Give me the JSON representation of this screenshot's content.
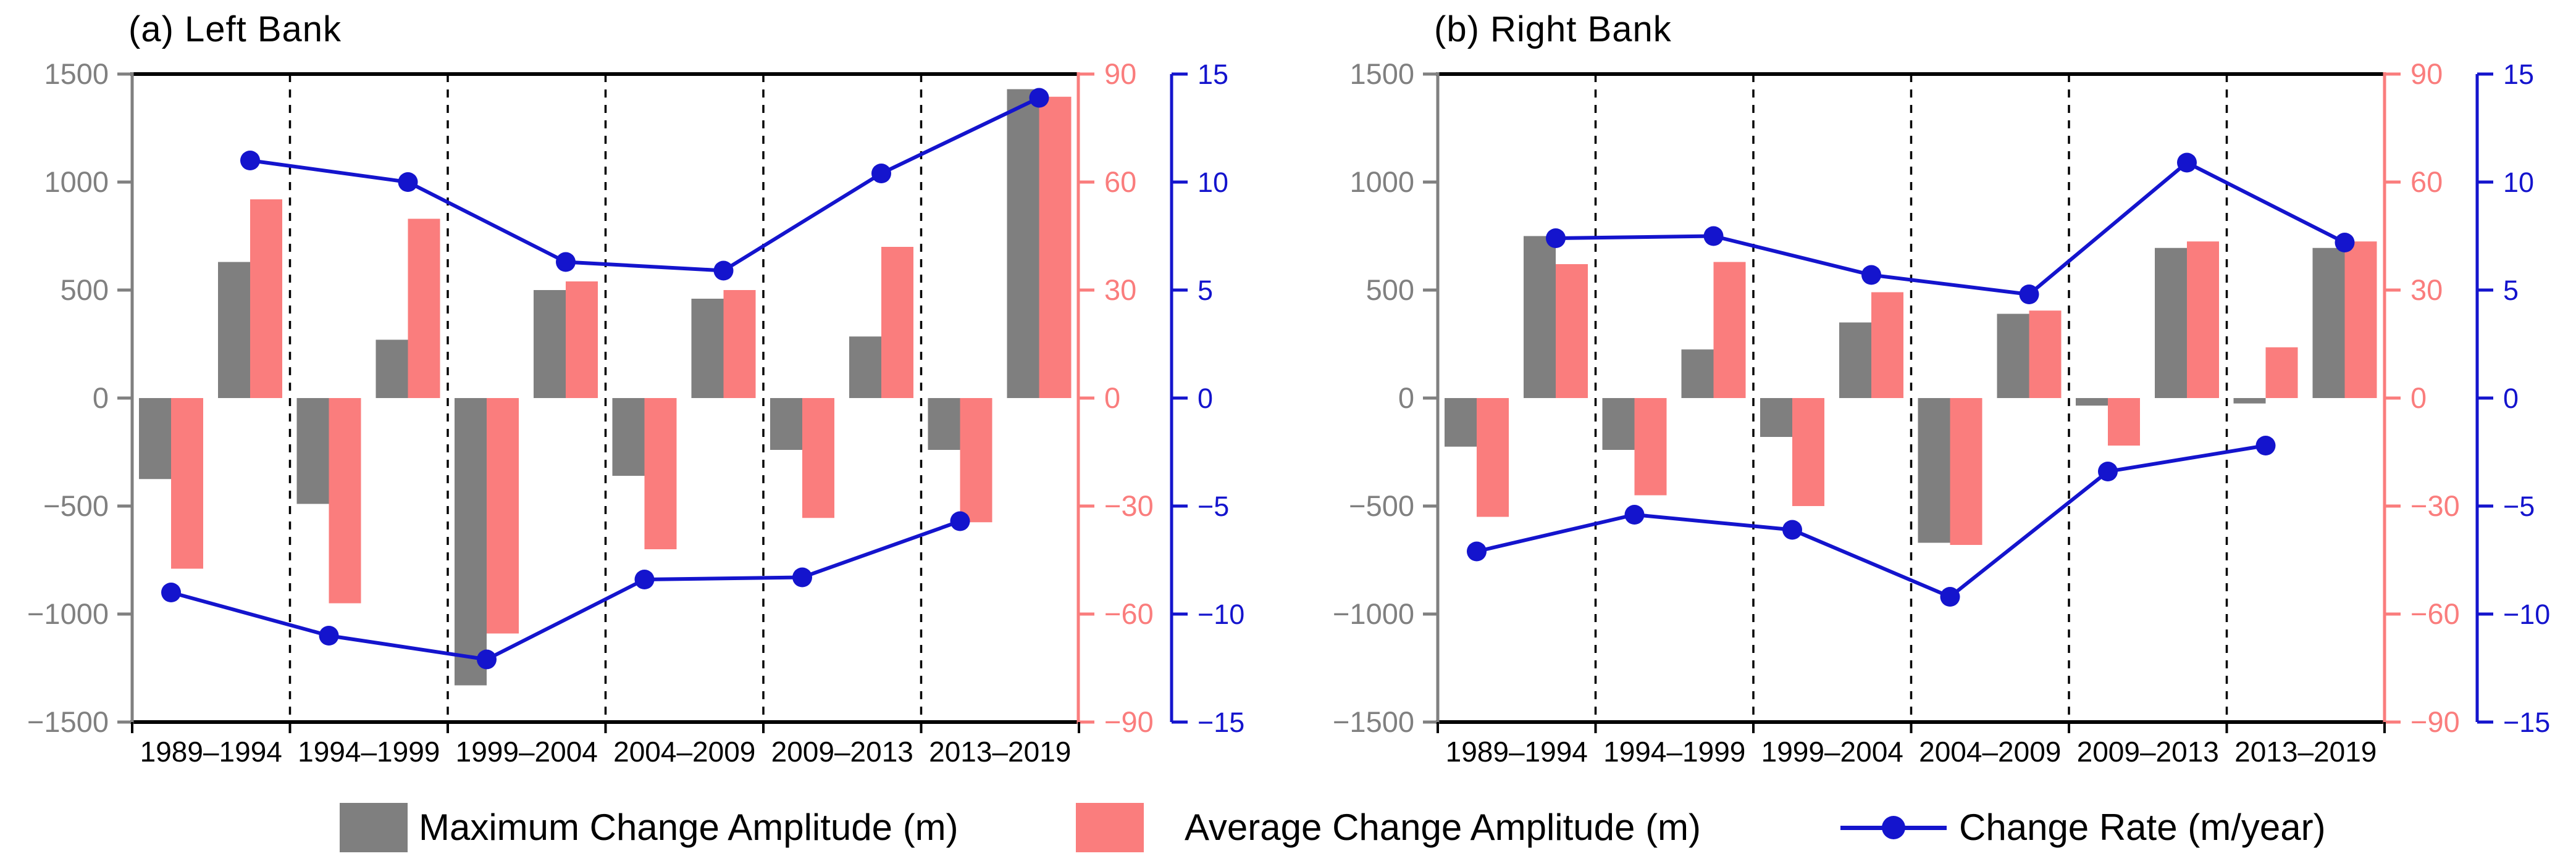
{
  "figure": {
    "background": "#ffffff"
  },
  "colors": {
    "max_bar": "#7f7f7f",
    "avg_bar": "#fa7d7d",
    "rate_line": "#1414cd",
    "axis_gray": "#808080",
    "frame": "#000000"
  },
  "legend": {
    "items": [
      {
        "swatch": "gray-rect",
        "label": "Maximum Change Amplitude (m)"
      },
      {
        "swatch": "red-rect",
        "label": "Average Change Amplitude (m)"
      },
      {
        "swatch": "blue-line-dot",
        "label": "Change Rate (m/year)"
      }
    ]
  },
  "chart_data": [
    {
      "type": "bar",
      "title": "(a) Left Bank",
      "categories": [
        "1989–1994",
        "1994–1999",
        "1999–2004",
        "2004–2009",
        "2009–2013",
        "2013–2019"
      ],
      "ylabel": "",
      "y_left": {
        "range": [
          -1500,
          1500
        ],
        "tick_labels": [
          "1500",
          "1000",
          "500",
          "0",
          "−500",
          "−1000",
          "−1500"
        ]
      },
      "y_right_red": {
        "range": [
          -90,
          90
        ],
        "tick_labels": [
          "90",
          "60",
          "30",
          "0",
          "−30",
          "−60",
          "−90"
        ]
      },
      "y_right_blue": {
        "range": [
          -15,
          15
        ],
        "tick_labels": [
          "15",
          "10",
          "5",
          "0",
          "−5",
          "−10",
          "−15"
        ]
      },
      "grid": "dashed-vertical-period-dividers",
      "legend_position": "below-figure",
      "series": [
        {
          "name": "Maximum Change Amplitude (m)",
          "group": "lower",
          "axis": "left",
          "values": [
            -375,
            -490,
            -1330,
            -360,
            -240,
            -240
          ]
        },
        {
          "name": "Average Change Amplitude (m)",
          "group": "lower",
          "axis": "left",
          "values": [
            -790,
            -950,
            -1090,
            -700,
            -555,
            -575
          ]
        },
        {
          "name": "Maximum Change Amplitude (m)",
          "group": "upper",
          "axis": "left",
          "values": [
            630,
            270,
            500,
            460,
            285,
            1430
          ]
        },
        {
          "name": "Average Change Amplitude (m)",
          "group": "upper",
          "axis": "left",
          "values": [
            920,
            830,
            540,
            500,
            700,
            1395
          ]
        },
        {
          "name": "Change Rate (m/year)",
          "group": "lower",
          "axis": "blue",
          "values": [
            -9.0,
            -11.0,
            -12.1,
            -8.4,
            -8.3,
            -5.7
          ]
        },
        {
          "name": "Change Rate (m/year)",
          "group": "upper",
          "axis": "blue",
          "values": [
            11.0,
            10.0,
            6.3,
            5.9,
            10.4,
            13.9
          ]
        }
      ]
    },
    {
      "type": "bar",
      "title": "(b) Right Bank",
      "categories": [
        "1989–1994",
        "1994–1999",
        "1999–2004",
        "2004–2009",
        "2009–2013",
        "2013–2019"
      ],
      "ylabel": "",
      "y_left": {
        "range": [
          -1500,
          1500
        ],
        "tick_labels": [
          "1500",
          "1000",
          "500",
          "0",
          "−500",
          "−1000",
          "−1500"
        ]
      },
      "y_right_red": {
        "range": [
          -90,
          90
        ],
        "tick_labels": [
          "90",
          "60",
          "30",
          "0",
          "−30",
          "−60",
          "−90"
        ]
      },
      "y_right_blue": {
        "range": [
          -15,
          15
        ],
        "tick_labels": [
          "15",
          "10",
          "5",
          "0",
          "−5",
          "−10",
          "−15"
        ]
      },
      "grid": "dashed-vertical-period-dividers",
      "legend_position": "below-figure",
      "series": [
        {
          "name": "Maximum Change Amplitude (m)",
          "group": "lower",
          "axis": "left",
          "values": [
            -225,
            -240,
            -180,
            -670,
            -35,
            -25
          ]
        },
        {
          "name": "Average Change Amplitude (m)",
          "group": "lower",
          "axis": "left",
          "values": [
            -550,
            -450,
            -500,
            -680,
            -220,
            235
          ]
        },
        {
          "name": "Maximum Change Amplitude (m)",
          "group": "upper",
          "axis": "left",
          "values": [
            750,
            225,
            350,
            390,
            695,
            695
          ]
        },
        {
          "name": "Average Change Amplitude (m)",
          "group": "upper",
          "axis": "left",
          "values": [
            620,
            630,
            490,
            405,
            725,
            725
          ]
        },
        {
          "name": "Change Rate (m/year)",
          "group": "lower",
          "axis": "blue",
          "values": [
            -7.1,
            -5.4,
            -6.1,
            -9.2,
            -3.4,
            -2.2
          ]
        },
        {
          "name": "Change Rate (m/year)",
          "group": "upper",
          "axis": "blue",
          "values": [
            7.4,
            7.5,
            5.7,
            4.8,
            10.9,
            7.2
          ]
        }
      ]
    }
  ]
}
